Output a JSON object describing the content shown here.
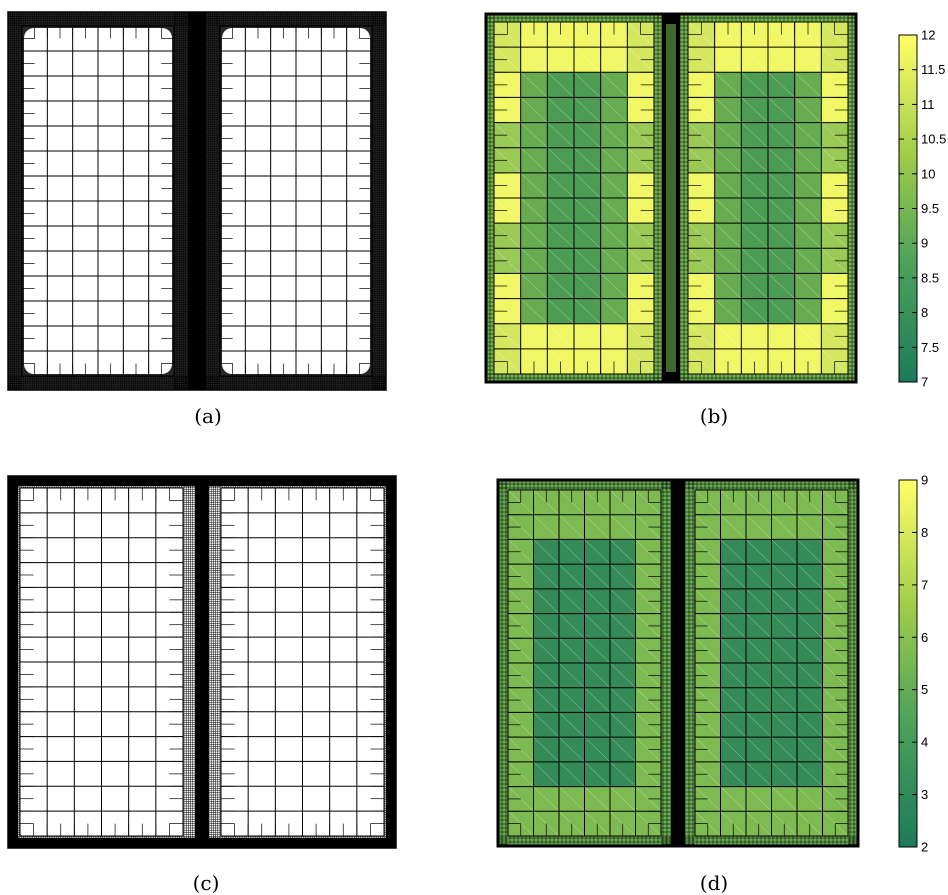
{
  "panels": [
    {
      "caption": "(a)",
      "kind": "mesh",
      "style": "rounded"
    },
    {
      "caption": "(b)",
      "kind": "colored",
      "style": "rounded"
    },
    {
      "caption": "(c)",
      "kind": "mesh",
      "style": "square"
    },
    {
      "caption": "(d)",
      "kind": "colored",
      "style": "square"
    }
  ],
  "colorbars": [
    {
      "min": 7,
      "max": 12,
      "ticks": [
        "12",
        "11.5",
        "11",
        "10.5",
        "10",
        "9.5",
        "9",
        "8.5",
        "8",
        "7.5",
        "7"
      ]
    },
    {
      "min": 2,
      "max": 9,
      "ticks": [
        "9",
        "8",
        "7",
        "6",
        "5",
        "4",
        "3",
        "2"
      ]
    }
  ],
  "colors": {
    "colormap_low": "#1b7a5a",
    "colormap_mid": "#6fb24f",
    "colormap_high": "#ffff66",
    "mesh_line": "#000000"
  }
}
